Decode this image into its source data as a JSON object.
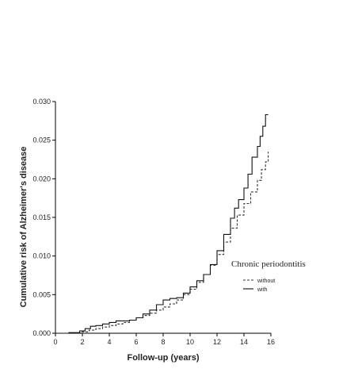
{
  "chart_data": {
    "type": "line",
    "title": "",
    "xlabel": "Follow-up (years)",
    "ylabel": "Cumulative risk of Alzheimer's disease",
    "xlim": [
      0,
      16
    ],
    "ylim": [
      0,
      0.03
    ],
    "x_ticks": [
      0,
      2,
      4,
      6,
      8,
      10,
      12,
      14,
      16
    ],
    "y_ticks": [
      0,
      0.005,
      0.01,
      0.015,
      0.02,
      0.025,
      0.03
    ],
    "x_tick_labels": [
      "0",
      "2",
      "4",
      "6",
      "8",
      "10",
      "12",
      "14",
      "16"
    ],
    "y_tick_labels": [
      "0.000",
      "0.005",
      "0.010",
      "0.015",
      "0.020",
      "0.025",
      "0.030"
    ],
    "grid": false,
    "legend": {
      "title": "Chronic periodontitis",
      "placement": "right"
    },
    "series": [
      {
        "name": "without",
        "style": "dashed",
        "color": "#333333",
        "x": [
          0,
          1,
          2,
          2.5,
          3,
          3.5,
          4,
          4.5,
          5,
          5.5,
          6,
          6.5,
          7,
          7.5,
          8,
          8.5,
          9,
          9.5,
          10,
          10.5,
          11,
          11.5,
          12,
          12.5,
          13,
          13.5,
          14,
          14.5,
          15,
          15.3,
          15.6,
          15.8
        ],
        "y": [
          0,
          5e-05,
          0.0002,
          0.0004,
          0.0006,
          0.0008,
          0.001,
          0.0012,
          0.0014,
          0.0017,
          0.002,
          0.0023,
          0.0026,
          0.003,
          0.0034,
          0.0038,
          0.0043,
          0.005,
          0.0057,
          0.0066,
          0.0076,
          0.0088,
          0.0102,
          0.0118,
          0.0136,
          0.0153,
          0.0168,
          0.0183,
          0.0198,
          0.0212,
          0.0222,
          0.0235
        ]
      },
      {
        "name": "with",
        "style": "solid",
        "color": "#111111",
        "x": [
          0,
          1,
          1.8,
          2.2,
          2.6,
          3,
          3.5,
          4,
          4.5,
          5,
          5.5,
          6,
          6.5,
          7,
          7.5,
          8,
          8.5,
          9,
          9.5,
          10,
          10.5,
          11,
          11.5,
          12,
          12.5,
          13,
          13.3,
          13.6,
          14,
          14.3,
          14.6,
          15,
          15.2,
          15.4,
          15.6,
          15.8
        ],
        "y": [
          0,
          8e-05,
          0.0003,
          0.0006,
          0.0009,
          0.001,
          0.0012,
          0.0014,
          0.0016,
          0.0016,
          0.0017,
          0.002,
          0.0025,
          0.003,
          0.0037,
          0.0043,
          0.0045,
          0.0046,
          0.0052,
          0.006,
          0.0068,
          0.0076,
          0.0089,
          0.0107,
          0.0128,
          0.0149,
          0.0162,
          0.0173,
          0.0188,
          0.0206,
          0.0228,
          0.0242,
          0.0255,
          0.0268,
          0.0283,
          0.0283
        ]
      }
    ]
  }
}
